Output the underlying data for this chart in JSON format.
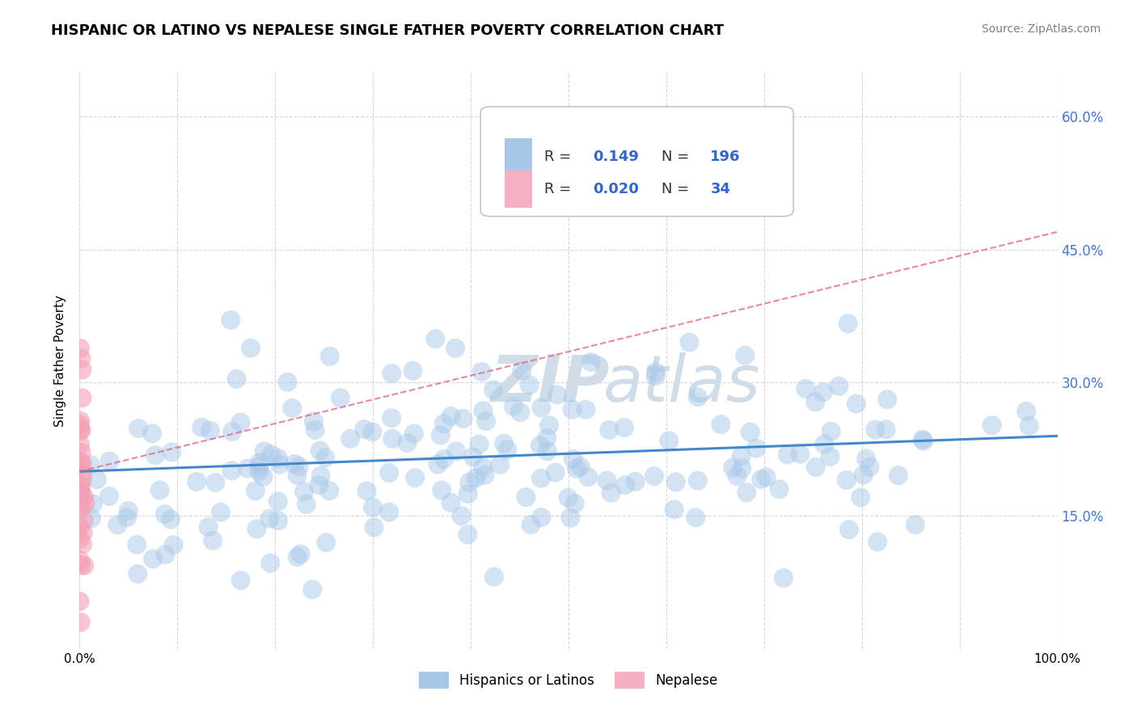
{
  "title": "HISPANIC OR LATINO VS NEPALESE SINGLE FATHER POVERTY CORRELATION CHART",
  "source": "Source: ZipAtlas.com",
  "ylabel": "Single Father Poverty",
  "xlim": [
    0.0,
    1.0
  ],
  "ylim": [
    0.0,
    0.65
  ],
  "x_ticks": [
    0.0,
    0.1,
    0.2,
    0.3,
    0.4,
    0.5,
    0.6,
    0.7,
    0.8,
    0.9,
    1.0
  ],
  "y_ticks": [
    0.15,
    0.3,
    0.45,
    0.6
  ],
  "y_tick_labels": [
    "15.0%",
    "30.0%",
    "45.0%",
    "60.0%"
  ],
  "blue_scatter_color": "#a8c8e8",
  "pink_scatter_color": "#f4a0b4",
  "blue_line_color": "#4488cc",
  "pink_line_color": "#e06080",
  "blue_R": 0.149,
  "blue_N": 196,
  "pink_R": 0.02,
  "pink_N": 34,
  "blue_trend_y0": 0.2,
  "blue_trend_y1": 0.24,
  "pink_trend_y0": 0.2,
  "pink_trend_y1": 0.47,
  "watermark_color": "#d0dde8",
  "tick_label_color": "#4477cc",
  "title_fontsize": 13,
  "source_fontsize": 10,
  "legend_fontsize": 13,
  "scatter_size": 300,
  "scatter_alpha": 0.5
}
